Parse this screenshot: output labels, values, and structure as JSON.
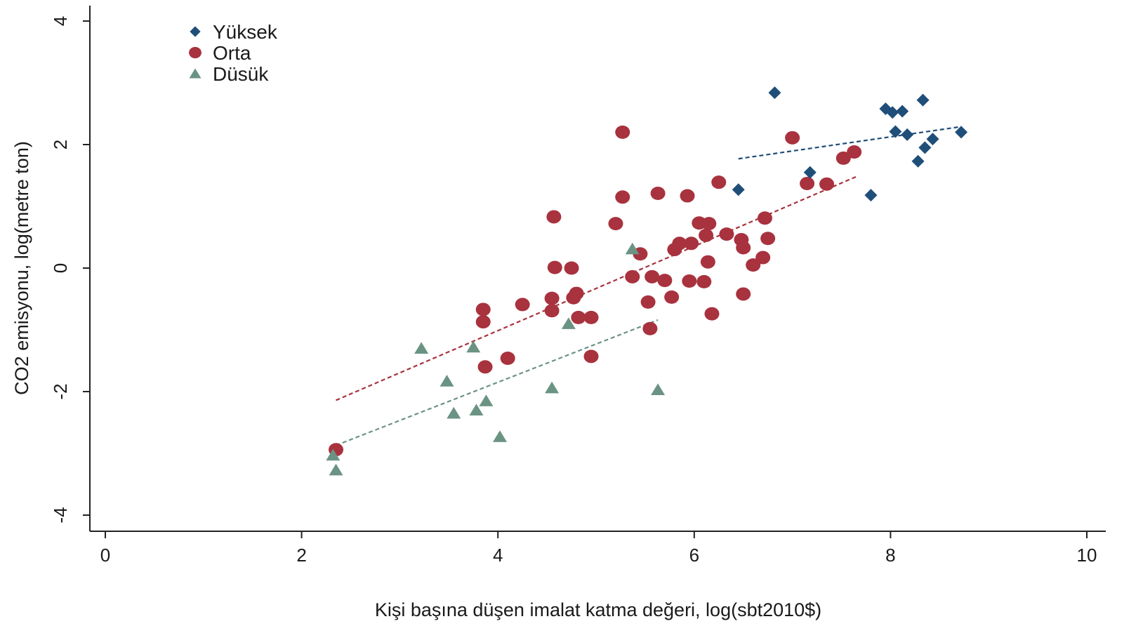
{
  "chart_data": {
    "type": "scatter",
    "title": "",
    "xlabel": "Kişi başına düşen imalat katma değeri, log(sbt2010$)",
    "ylabel": "CO2 emisyonu, log(metre ton)",
    "xlim": [
      0,
      10
    ],
    "ylim": [
      -4,
      4
    ],
    "xticks": [
      "0",
      "2",
      "4",
      "6",
      "8",
      "10"
    ],
    "yticks": [
      "-4",
      "-2",
      "0",
      "2",
      "4"
    ],
    "grid": false,
    "legend_position": "top-left",
    "series": [
      {
        "name": "Yüksek",
        "marker": "diamond",
        "color": "#1f4e79",
        "points": [
          [
            6.45,
            1.27
          ],
          [
            6.82,
            2.84
          ],
          [
            7.18,
            1.55
          ],
          [
            7.8,
            1.18
          ],
          [
            7.95,
            2.58
          ],
          [
            8.02,
            2.52
          ],
          [
            8.05,
            2.21
          ],
          [
            8.12,
            2.54
          ],
          [
            8.17,
            2.16
          ],
          [
            8.28,
            1.73
          ],
          [
            8.33,
            2.72
          ],
          [
            8.35,
            1.95
          ],
          [
            8.43,
            2.09
          ],
          [
            8.72,
            2.2
          ]
        ],
        "fit": {
          "x": [
            6.45,
            8.72
          ],
          "y": [
            1.77,
            2.29
          ]
        }
      },
      {
        "name": "Orta",
        "marker": "circle",
        "color": "#a8323e",
        "points": [
          [
            2.35,
            -2.94
          ],
          [
            3.85,
            -0.67
          ],
          [
            3.85,
            -0.87
          ],
          [
            3.87,
            -1.6
          ],
          [
            4.1,
            -1.46
          ],
          [
            4.25,
            -0.59
          ],
          [
            4.55,
            -0.49
          ],
          [
            4.55,
            -0.69
          ],
          [
            4.57,
            0.83
          ],
          [
            4.58,
            0.01
          ],
          [
            4.75,
            0.0
          ],
          [
            4.77,
            -0.48
          ],
          [
            4.8,
            -0.41
          ],
          [
            4.82,
            -0.8
          ],
          [
            4.95,
            -0.8
          ],
          [
            4.95,
            -1.43
          ],
          [
            5.2,
            0.72
          ],
          [
            5.27,
            2.2
          ],
          [
            5.27,
            1.15
          ],
          [
            5.37,
            -0.14
          ],
          [
            5.45,
            0.23
          ],
          [
            5.53,
            -0.55
          ],
          [
            5.55,
            -0.98
          ],
          [
            5.57,
            -0.14
          ],
          [
            5.63,
            1.21
          ],
          [
            5.7,
            -0.2
          ],
          [
            5.77,
            -0.47
          ],
          [
            5.8,
            0.3
          ],
          [
            5.85,
            0.4
          ],
          [
            5.93,
            1.17
          ],
          [
            5.95,
            -0.21
          ],
          [
            5.97,
            0.4
          ],
          [
            6.05,
            0.73
          ],
          [
            6.1,
            -0.22
          ],
          [
            6.12,
            0.53
          ],
          [
            6.14,
            0.1
          ],
          [
            6.15,
            0.72
          ],
          [
            6.18,
            -0.74
          ],
          [
            6.25,
            1.39
          ],
          [
            6.33,
            0.55
          ],
          [
            6.48,
            0.46
          ],
          [
            6.5,
            0.33
          ],
          [
            6.5,
            -0.42
          ],
          [
            6.6,
            0.05
          ],
          [
            6.7,
            0.17
          ],
          [
            6.72,
            0.81
          ],
          [
            6.75,
            0.48
          ],
          [
            7.0,
            2.11
          ],
          [
            7.15,
            1.37
          ],
          [
            7.35,
            1.36
          ],
          [
            7.52,
            1.78
          ],
          [
            7.63,
            1.88
          ]
        ],
        "fit": {
          "x": [
            2.35,
            7.65
          ],
          "y": [
            -2.14,
            1.48
          ]
        }
      },
      {
        "name": "Düsük",
        "marker": "triangle",
        "color": "#6b9383",
        "points": [
          [
            2.32,
            -3.03
          ],
          [
            2.35,
            -3.27
          ],
          [
            3.22,
            -1.3
          ],
          [
            3.48,
            -1.83
          ],
          [
            3.55,
            -2.35
          ],
          [
            3.75,
            -1.28
          ],
          [
            3.78,
            -2.3
          ],
          [
            3.88,
            -2.15
          ],
          [
            4.02,
            -2.73
          ],
          [
            4.55,
            -1.94
          ],
          [
            4.72,
            -0.9
          ],
          [
            5.37,
            0.31
          ],
          [
            5.63,
            -1.97
          ]
        ],
        "fit": {
          "x": [
            2.35,
            5.63
          ],
          "y": [
            -2.87,
            -0.84
          ]
        }
      }
    ]
  }
}
